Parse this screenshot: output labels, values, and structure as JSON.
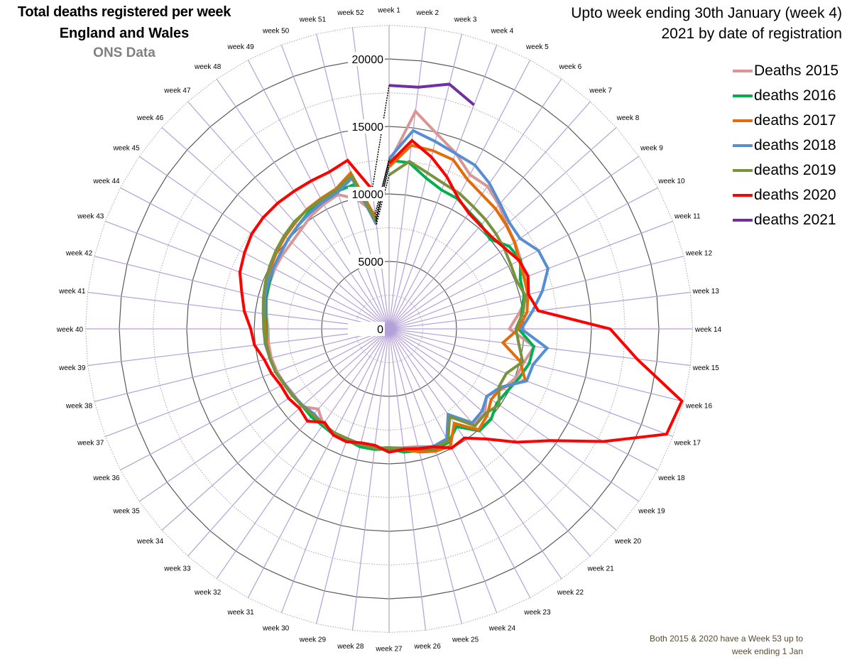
{
  "header": {
    "title_line1": "Total deaths registered per week",
    "title_line2": "England and Wales",
    "source": "ONS Data",
    "subtitle_line1": "Upto week ending 30th January (week 4)",
    "subtitle_line2": "2021 by date of registration"
  },
  "footnote": {
    "line1": "Both 2015 & 2020 have a Week 53 up to",
    "line2": "week ending 1 Jan"
  },
  "chart_data": {
    "type": "radar",
    "title": "Total deaths registered per week England and Wales",
    "subtitle": "Upto week ending 30th January (week 4) 2021 by date of registration",
    "categories": [
      "week 1",
      "week 2",
      "week 3",
      "week 4",
      "week 5",
      "week 6",
      "week 7",
      "week 8",
      "week 9",
      "week 10",
      "week 11",
      "week 12",
      "week 13",
      "week 14",
      "week 15",
      "week 16",
      "week 17",
      "week 18",
      "week 19",
      "week 20",
      "week 21",
      "week 22",
      "week 23",
      "week 24",
      "week 25",
      "week 26",
      "week 27",
      "week 28",
      "week 29",
      "week 30",
      "week 31",
      "week 32",
      "week 33",
      "week 34",
      "week 35",
      "week 36",
      "week 37",
      "week 38",
      "week 39",
      "week 40",
      "week 41",
      "week 42",
      "week 43",
      "week 44",
      "week 45",
      "week 46",
      "week 47",
      "week 48",
      "week 49",
      "week 50",
      "week 51",
      "week 52"
    ],
    "radial_ticks": [
      0,
      5000,
      10000,
      15000,
      20000
    ],
    "minor_rings": [
      2500,
      7500,
      12500,
      17500,
      22500
    ],
    "rlim": [
      0,
      22500
    ],
    "legend_position": "right",
    "series": [
      {
        "name": "Deaths 2015",
        "color": "#d99694",
        "values": [
          12286,
          16237,
          14866,
          13934,
          12900,
          12837,
          12280,
          11653,
          11323,
          11027,
          10787,
          10602,
          9718,
          8915,
          10837,
          10298,
          10084,
          9546,
          8779,
          9469,
          9389,
          7820,
          9326,
          9349,
          8981,
          8869,
          8924,
          8910,
          8797,
          8721,
          8766,
          8592,
          7928,
          8679,
          8576,
          8745,
          8893,
          8990,
          9001,
          8969,
          9169,
          9366,
          9484,
          9572,
          9622,
          9650,
          9841,
          10180,
          10424,
          10645,
          9900,
          8600
        ]
      },
      {
        "name": "deaths 2016",
        "color": "#00b050",
        "values": [
          12500,
          12400,
          11500,
          11000,
          10900,
          10500,
          10300,
          10000,
          10800,
          11000,
          10400,
          10300,
          9900,
          9600,
          10800,
          10700,
          10300,
          9900,
          9700,
          10100,
          10100,
          8800,
          9500,
          9600,
          9300,
          9200,
          8900,
          9000,
          9000,
          8800,
          8850,
          8700,
          8700,
          8600,
          8700,
          8800,
          9000,
          9100,
          9150,
          9100,
          9200,
          9400,
          9500,
          9700,
          9800,
          10000,
          10200,
          10500,
          10600,
          10900,
          11000,
          8100
        ]
      },
      {
        "name": "deaths 2017",
        "color": "#e36c09",
        "values": [
          12000,
          13700,
          13600,
          13400,
          12500,
          12100,
          11900,
          11600,
          11300,
          10900,
          10700,
          10600,
          10300,
          9600,
          8500,
          10000,
          10800,
          9400,
          9200,
          9700,
          10000,
          8500,
          9800,
          9700,
          9400,
          9000,
          8800,
          8900,
          8800,
          8700,
          8700,
          8600,
          8500,
          8600,
          8700,
          8800,
          9000,
          9100,
          9150,
          9200,
          9300,
          9500,
          9650,
          9900,
          10100,
          10300,
          10500,
          10750,
          10900,
          11100,
          11900,
          8300
        ]
      },
      {
        "name": "deaths 2018",
        "color": "#558ed5",
        "values": [
          12600,
          14800,
          14300,
          13900,
          13700,
          13100,
          12400,
          11900,
          11800,
          12500,
          12600,
          11700,
          10700,
          9800,
          11800,
          11000,
          10900,
          9300,
          8800,
          9200,
          9300,
          7700,
          9200,
          9300,
          9100,
          8900,
          8800,
          8900,
          8800,
          8700,
          8750,
          8600,
          8400,
          8550,
          8650,
          8750,
          9000,
          9100,
          9250,
          9300,
          9300,
          9500,
          9600,
          9700,
          9800,
          10000,
          10200,
          10400,
          10600,
          10800,
          11500,
          7800
        ]
      },
      {
        "name": "deaths 2019",
        "color": "#77933c",
        "values": [
          11400,
          12500,
          11900,
          11500,
          11300,
          11000,
          10800,
          10600,
          10400,
          10200,
          10100,
          10400,
          10000,
          9400,
          9700,
          10200,
          9300,
          9200,
          9900,
          9500,
          9600,
          7900,
          9400,
          9400,
          9100,
          8900,
          8800,
          8900,
          8800,
          8700,
          8700,
          8600,
          8500,
          8600,
          8700,
          8800,
          9000,
          9100,
          9200,
          9300,
          9400,
          9600,
          9800,
          10000,
          10200,
          10400,
          10600,
          10700,
          10800,
          11000,
          11700,
          8000
        ]
      },
      {
        "name": "deaths 2020",
        "color": "#ff0000",
        "values": [
          12254,
          14058,
          13115,
          12061,
          10984,
          10406,
          10223,
          10216,
          10470,
          10895,
          11019,
          10645,
          11141,
          16387,
          18516,
          22351,
          21997,
          17953,
          14573,
          12657,
          10897,
          9824,
          9976,
          9339,
          9140,
          8979,
          9140,
          8690,
          8690,
          8946,
          8891,
          8417,
          9128,
          8875,
          9052,
          9051,
          9315,
          9523,
          10045,
          10256,
          10811,
          11246,
          11830,
          12109,
          12375,
          12458,
          12453,
          12395,
          12393,
          12448,
          12861,
          10400
        ]
      },
      {
        "name": "deaths 2021",
        "color": "#7030a0",
        "values": [
          18042,
          18042,
          18676,
          17751,
          null,
          null,
          null,
          null,
          null,
          null,
          null,
          null,
          null,
          null,
          null,
          null,
          null,
          null,
          null,
          null,
          null,
          null,
          null,
          null,
          null,
          null,
          null,
          null,
          null,
          null,
          null,
          null,
          null,
          null,
          null,
          null,
          null,
          null,
          null,
          null,
          null,
          null,
          null,
          null,
          null,
          null,
          null,
          null,
          null,
          null,
          null,
          null
        ]
      }
    ],
    "annotations": [
      "Both 2015 & 2020 have a Week 53 up to week ending 1 Jan"
    ]
  }
}
